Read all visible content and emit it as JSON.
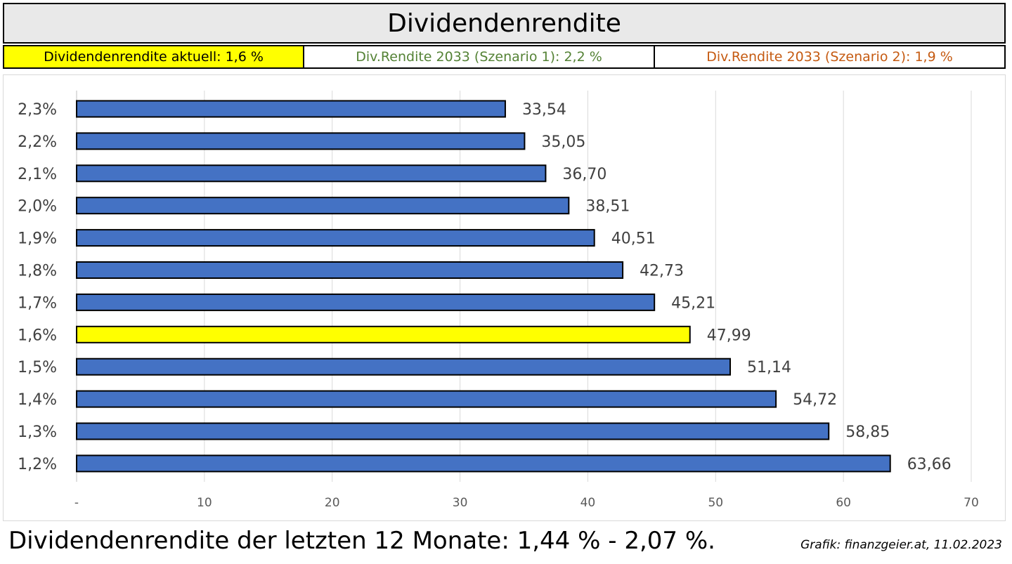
{
  "header": {
    "title": "Dividendenrendite"
  },
  "info": {
    "current": "Dividendenrendite aktuell: 1,6 %",
    "scenario1": "Div.Rendite 2033 (Szenario 1): 2,2 %",
    "scenario2": "Div.Rendite 2033 (Szenario 2): 1,9 %"
  },
  "colors": {
    "bar": "#4472c4",
    "highlight": "#ffff00",
    "scenario1_text": "#548235",
    "scenario2_text": "#c55a11",
    "grid": "#d9d9d9"
  },
  "footer": {
    "summary": "Dividendenrendite der letzten 12 Monate: 1,44 % - 2,07 %.",
    "credit": "Grafik: finanzgeier.at, 11.02.2023"
  },
  "chart_data": {
    "type": "bar",
    "orientation": "horizontal",
    "categories": [
      "2,3%",
      "2,2%",
      "2,1%",
      "2,0%",
      "1,9%",
      "1,8%",
      "1,7%",
      "1,6%",
      "1,5%",
      "1,4%",
      "1,3%",
      "1,2%"
    ],
    "values": [
      33.54,
      35.05,
      36.7,
      38.51,
      40.51,
      42.73,
      45.21,
      47.99,
      51.14,
      54.72,
      58.85,
      63.66
    ],
    "value_labels": [
      "33,54",
      "35,05",
      "36,70",
      "38,51",
      "40,51",
      "42,73",
      "45,21",
      "47,99",
      "51,14",
      "54,72",
      "58,85",
      "63,66"
    ],
    "highlight_category": "1,6%",
    "xlim": [
      0,
      70
    ],
    "x_ticks": [
      0,
      10,
      20,
      30,
      40,
      50,
      60,
      70
    ],
    "x_tick_labels": [
      "-",
      "10",
      "20",
      "30",
      "40",
      "50",
      "60",
      "70"
    ],
    "grid": true,
    "legend": "none",
    "xlabel": "",
    "ylabel": ""
  }
}
